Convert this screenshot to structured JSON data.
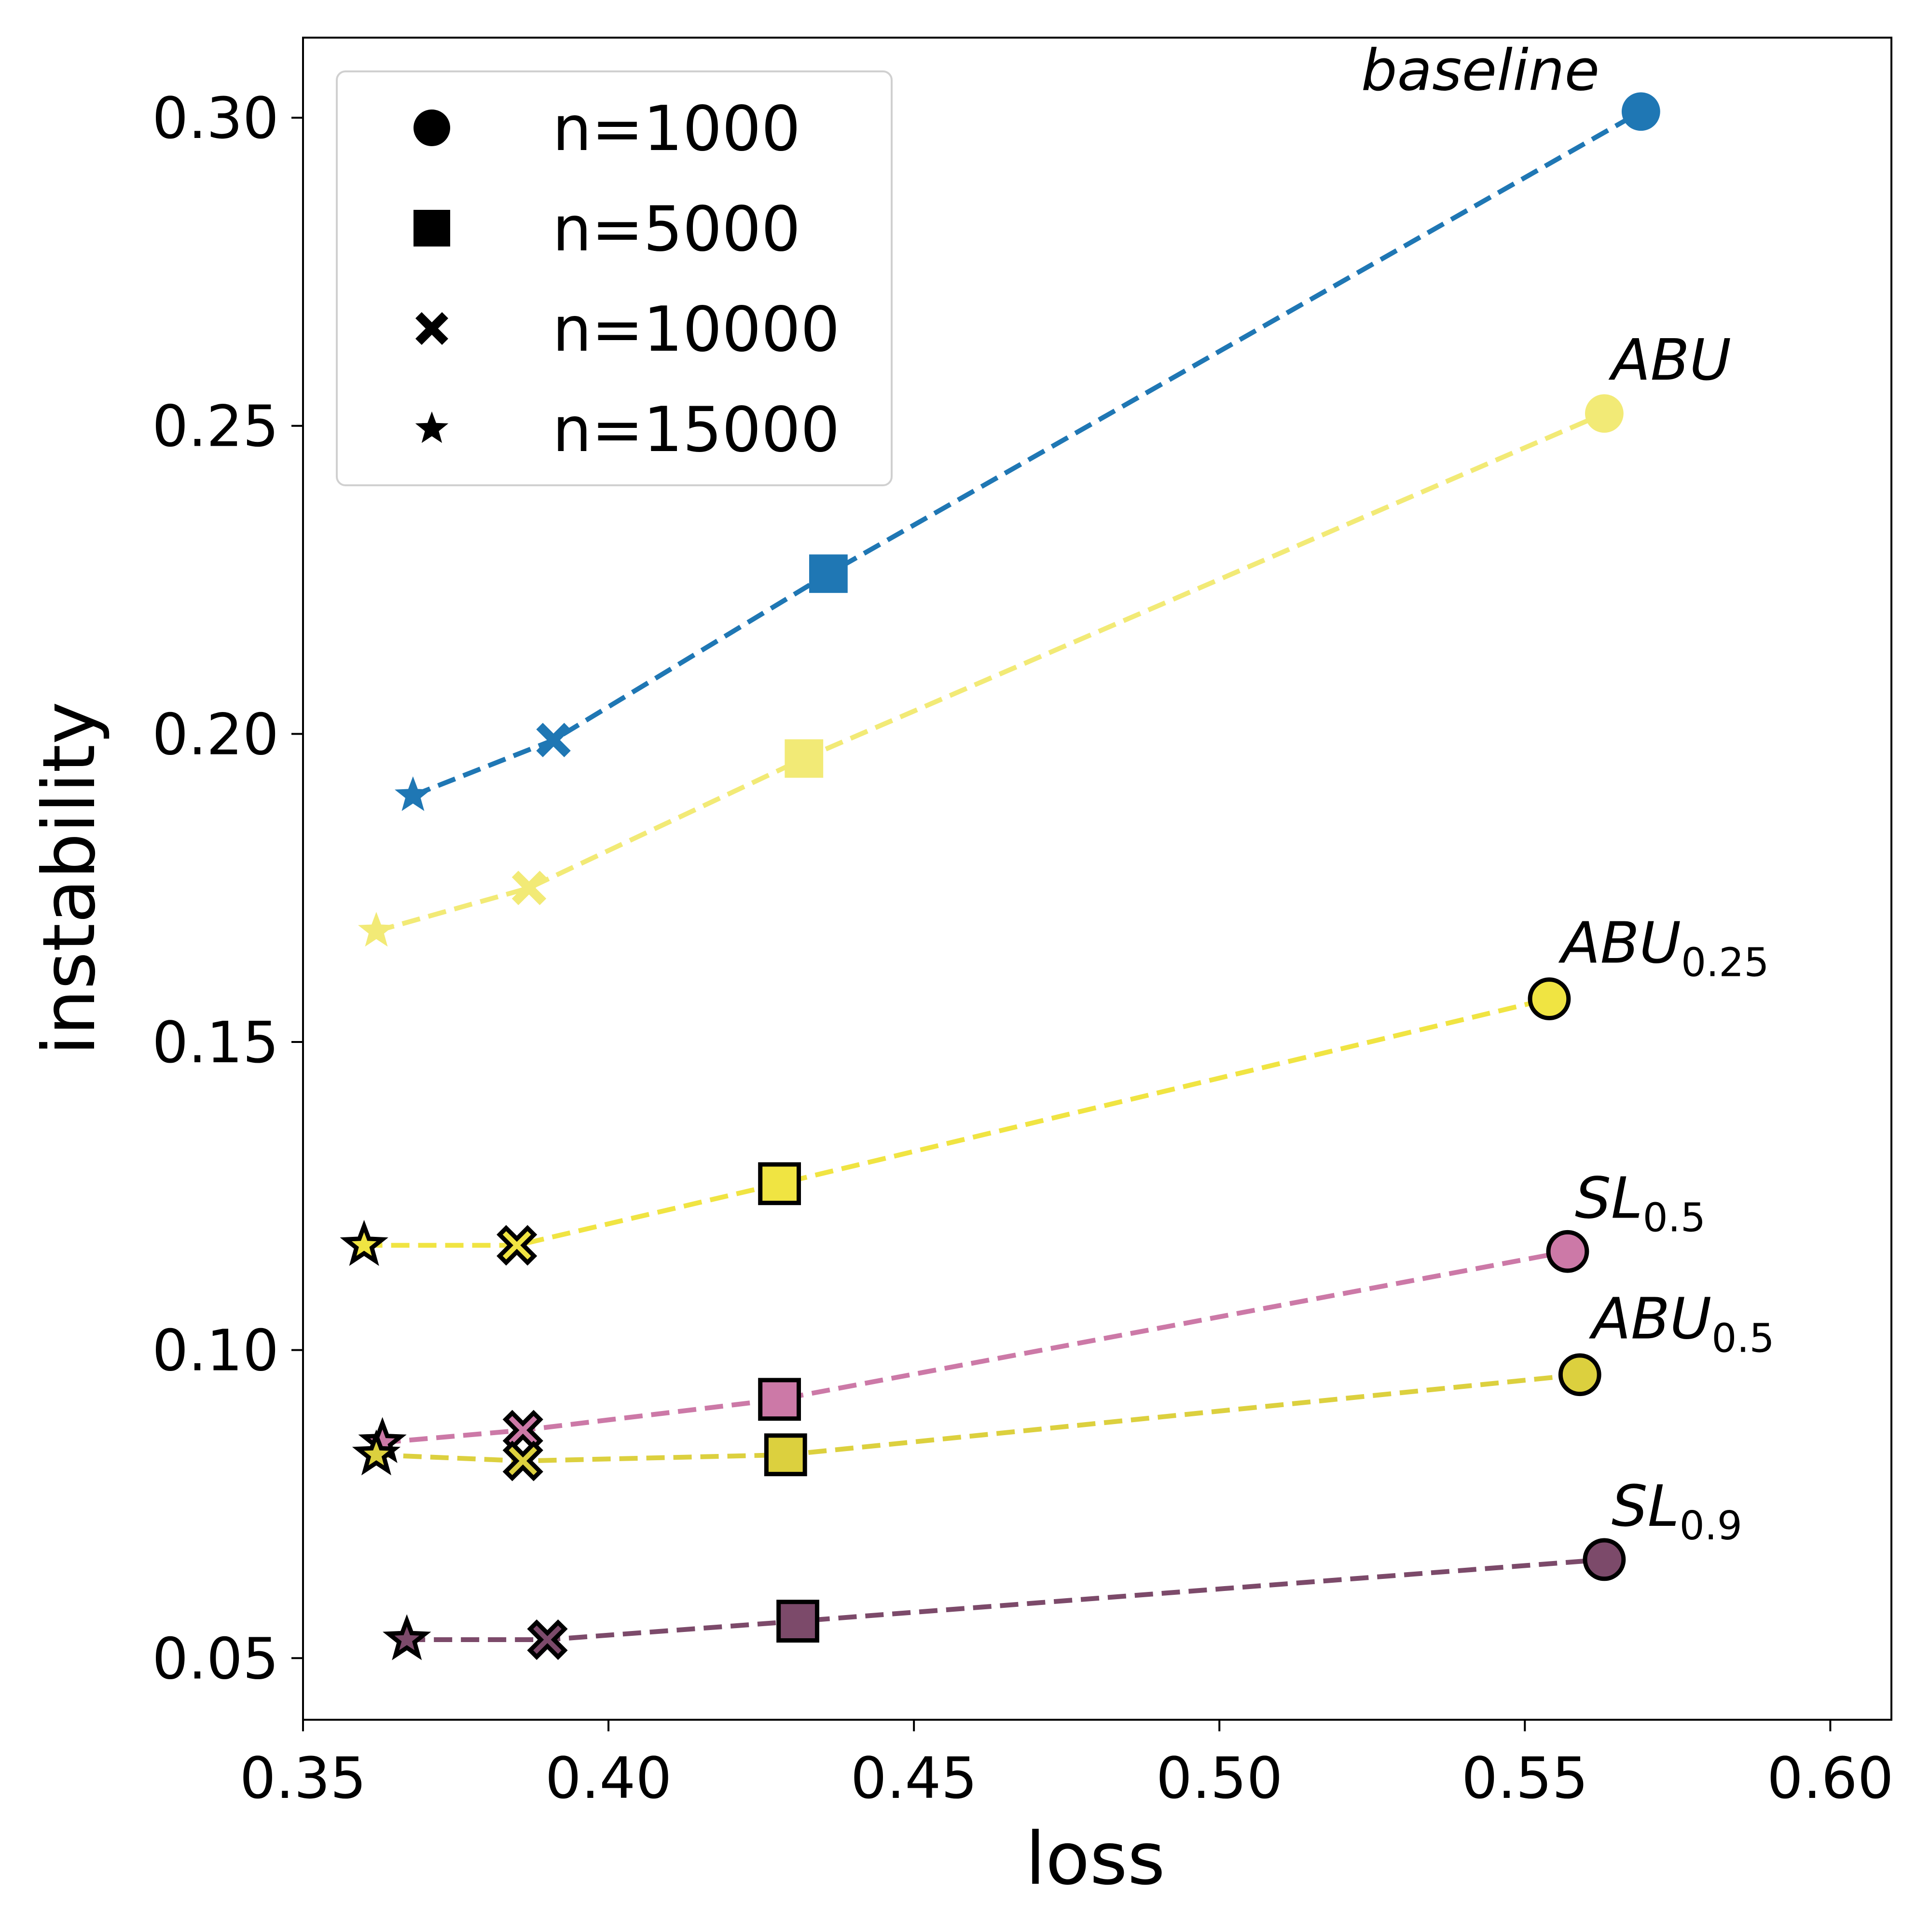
{
  "chart_data": {
    "type": "scatter",
    "xlabel": "loss",
    "ylabel": "instability",
    "xlim": [
      0.35,
      0.61
    ],
    "ylim": [
      0.04,
      0.313
    ],
    "xticks": [
      0.35,
      0.4,
      0.45,
      0.5,
      0.55,
      0.6
    ],
    "yticks": [
      0.05,
      0.1,
      0.15,
      0.2,
      0.25,
      0.3
    ],
    "x_tick_labels": [
      "0.35",
      "0.40",
      "0.45",
      "0.50",
      "0.55",
      "0.60"
    ],
    "y_tick_labels": [
      "0.05",
      "0.10",
      "0.15",
      "0.20",
      "0.25",
      "0.30"
    ],
    "grid": false,
    "legend": {
      "placement": "top-left",
      "entries": [
        {
          "marker": "circle",
          "label": "n=1000"
        },
        {
          "marker": "square",
          "label": "n=5000"
        },
        {
          "marker": "x",
          "label": "n=10000"
        },
        {
          "marker": "star",
          "label": "n=15000"
        }
      ]
    },
    "point_markers": [
      "star",
      "x",
      "square",
      "circle"
    ],
    "series": [
      {
        "label": "baseline",
        "label_sub": "",
        "color": "#1f77b4",
        "edge": false,
        "x": [
          0.368,
          0.391,
          0.436,
          0.569
        ],
        "y": [
          0.19,
          0.199,
          0.226,
          0.301
        ]
      },
      {
        "label": "ABU",
        "label_sub": "",
        "color": "#f2ea76",
        "edge": false,
        "x": [
          0.362,
          0.387,
          0.432,
          0.563
        ],
        "y": [
          0.168,
          0.175,
          0.196,
          0.252
        ]
      },
      {
        "label": "ABU",
        "label_sub": "0.25",
        "color": "#f0e442",
        "edge": true,
        "x": [
          0.36,
          0.385,
          0.428,
          0.554
        ],
        "y": [
          0.117,
          0.117,
          0.127,
          0.157
        ]
      },
      {
        "label": "SL",
        "label_sub": "0.5",
        "color": "#cc79a7",
        "edge": true,
        "x": [
          0.363,
          0.386,
          0.428,
          0.557
        ],
        "y": [
          0.085,
          0.087,
          0.092,
          0.116
        ]
      },
      {
        "label": "ABU",
        "label_sub": "0.5",
        "color": "#dcd03e",
        "edge": true,
        "x": [
          0.362,
          0.386,
          0.429,
          0.559
        ],
        "y": [
          0.083,
          0.082,
          0.083,
          0.096
        ]
      },
      {
        "label": "SL",
        "label_sub": "0.9",
        "color": "#7c4a6a",
        "edge": true,
        "x": [
          0.367,
          0.39,
          0.431,
          0.563
        ],
        "y": [
          0.053,
          0.053,
          0.056,
          0.066
        ]
      }
    ]
  }
}
